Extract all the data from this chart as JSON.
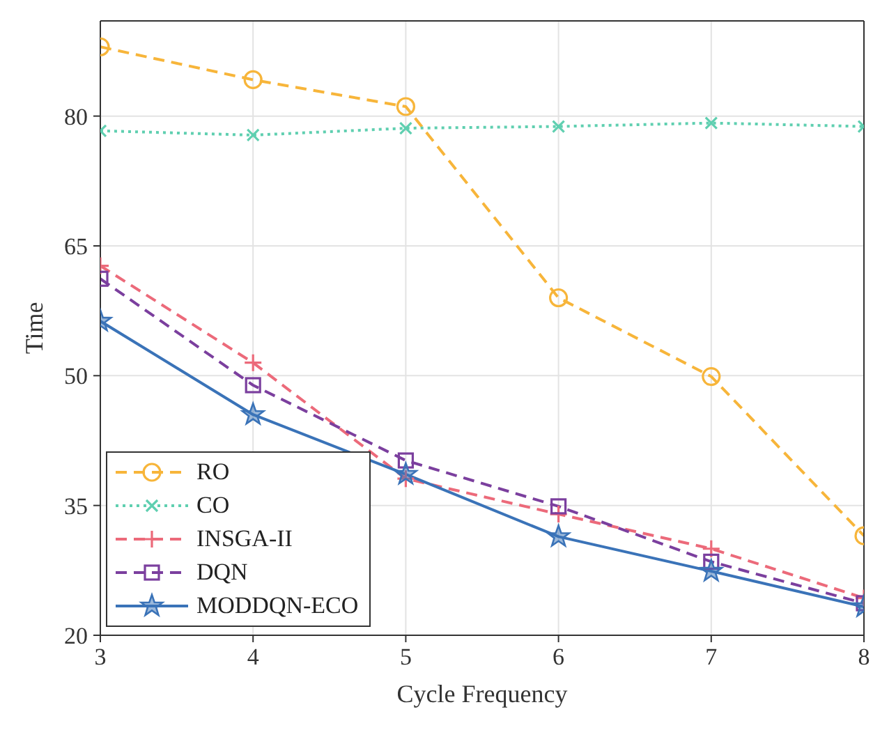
{
  "chart_data": {
    "type": "line",
    "xlabel": "Cycle Frequency",
    "ylabel": "Time",
    "x": [
      3,
      4,
      5,
      6,
      7,
      8
    ],
    "xlim": [
      3,
      8
    ],
    "xticks": [
      3,
      4,
      5,
      6,
      7,
      8
    ],
    "ylim": [
      20,
      91
    ],
    "yticks": [
      20,
      35,
      50,
      65,
      80
    ],
    "grid": true,
    "legend": "bottom left",
    "series": [
      {
        "name": "RO",
        "color": "#f7b53a",
        "values": [
          88.0,
          84.2,
          81.1,
          59.0,
          49.9,
          31.5
        ],
        "marker": "circle",
        "line_style": "dashed"
      },
      {
        "name": "CO",
        "color": "#5fcfb0",
        "values": [
          78.3,
          77.8,
          78.6,
          78.8,
          79.2,
          78.8
        ],
        "marker": "cross",
        "line_style": "dotted"
      },
      {
        "name": "INSGA-II",
        "color": "#ec6a7a",
        "values": [
          62.7,
          51.5,
          38.1,
          34.0,
          30.0,
          24.3
        ],
        "marker": "plus",
        "line_style": "dashed"
      },
      {
        "name": "DQN",
        "color": "#7b3f9e",
        "values": [
          61.2,
          48.9,
          40.2,
          34.9,
          28.5,
          23.7
        ],
        "marker": "square",
        "line_style": "dashed"
      },
      {
        "name": "MODDQN-ECO",
        "color": "#3a73b8",
        "values": [
          56.3,
          45.5,
          38.6,
          31.4,
          27.4,
          23.3
        ],
        "marker": "star",
        "line_style": "solid"
      }
    ]
  }
}
